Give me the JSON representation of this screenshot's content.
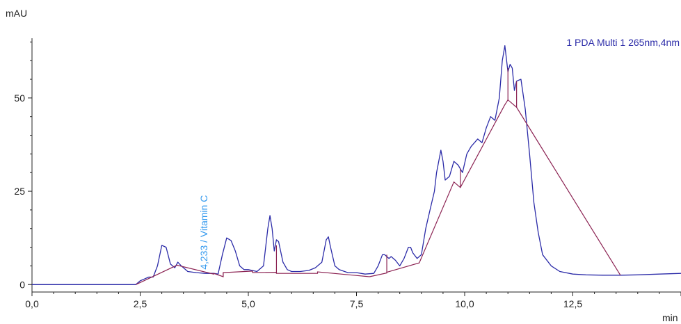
{
  "chart_data": {
    "type": "line",
    "ylabel": "mAU",
    "xlabel": "min",
    "xlim": [
      0,
      15
    ],
    "ylim": [
      -2,
      66
    ],
    "x_ticks": [
      0,
      2.5,
      5,
      7.5,
      10,
      12.5
    ],
    "x_tick_labels": [
      "0,0",
      "2,5",
      "5,0",
      "7,5",
      "10,0",
      "12,5"
    ],
    "y_ticks": [
      0,
      25,
      50
    ],
    "y_tick_labels": [
      "0",
      "25",
      "50"
    ],
    "grid": false,
    "legend_position": "top-right",
    "colors": {
      "signal": "#2b2ba8",
      "baseline": "#8b2252",
      "label": "#3399ee",
      "axis": "#222222"
    },
    "series": [
      {
        "name": "1 PDA Multi 1 265nm,4nm",
        "x": [
          0,
          2.4,
          2.5,
          2.6,
          2.7,
          2.8,
          2.9,
          3.0,
          3.1,
          3.2,
          3.3,
          3.37,
          3.45,
          3.6,
          3.8,
          4.0,
          4.2,
          4.3,
          4.4,
          4.5,
          4.6,
          4.7,
          4.8,
          4.9,
          5.0,
          5.2,
          5.35,
          5.45,
          5.5,
          5.55,
          5.6,
          5.65,
          5.7,
          5.8,
          5.9,
          6.0,
          6.2,
          6.4,
          6.55,
          6.7,
          6.8,
          6.85,
          6.9,
          7.0,
          7.1,
          7.3,
          7.5,
          7.7,
          7.9,
          8.0,
          8.1,
          8.15,
          8.25,
          8.3,
          8.4,
          8.5,
          8.6,
          8.7,
          8.75,
          8.8,
          8.9,
          9.0,
          9.1,
          9.2,
          9.3,
          9.35,
          9.45,
          9.5,
          9.55,
          9.65,
          9.75,
          9.85,
          9.9,
          9.95,
          10.05,
          10.15,
          10.3,
          10.4,
          10.5,
          10.6,
          10.7,
          10.8,
          10.87,
          10.93,
          11.0,
          11.05,
          11.1,
          11.15,
          11.2,
          11.3,
          11.4,
          11.5,
          11.6,
          11.7,
          11.8,
          12.0,
          12.2,
          12.5,
          12.8,
          13.2,
          13.6,
          14.0,
          14.5,
          15.0
        ],
        "y": [
          0,
          0,
          1,
          1.5,
          2,
          2,
          5,
          10.5,
          10,
          5.5,
          4.5,
          6,
          5,
          3.5,
          3.2,
          3,
          3,
          2.8,
          8,
          12.5,
          11.8,
          9,
          5,
          4,
          4,
          3.5,
          5,
          15,
          18.5,
          15,
          9,
          12,
          11.5,
          6,
          4,
          3.5,
          3.5,
          3.8,
          4.5,
          6,
          12,
          12.8,
          10,
          5,
          4,
          3.2,
          3.2,
          2.8,
          3,
          5,
          8,
          8,
          7,
          7.5,
          6.5,
          5,
          7,
          10,
          10,
          8.5,
          7,
          8,
          15,
          20,
          25,
          30,
          36,
          33,
          28,
          29,
          33,
          32,
          31,
          30,
          35,
          37,
          39,
          38,
          42,
          45,
          44,
          50,
          60,
          64,
          57,
          59,
          58,
          52,
          54.5,
          55,
          47,
          35,
          22,
          14,
          8,
          5,
          3.5,
          2.8,
          2.6,
          2.5,
          2.5,
          2.6,
          2.8,
          3
        ]
      }
    ],
    "baseline": {
      "x": [
        2.4,
        3.35,
        4.2,
        4.2,
        4.42,
        4.42,
        5.1,
        5.1,
        5.65,
        5.65,
        6.6,
        6.6,
        7.8,
        7.8,
        8.2,
        8.2,
        8.95,
        8.95,
        9.75,
        9.75,
        9.9,
        9.9,
        10.92,
        10.92,
        11.0,
        11.0,
        11.2,
        11.2,
        13.6
      ],
      "y": [
        0,
        5.2,
        2.8,
        3.0,
        2.1,
        3.2,
        3.6,
        3.2,
        3.3,
        3.0,
        3.0,
        3.4,
        2.1,
        2.1,
        3.1,
        3.3,
        5.8,
        5.8,
        27.5,
        27.5,
        26.0,
        26.0,
        48.0,
        48.0,
        49.5,
        49.5,
        47.5,
        47.5,
        2.5
      ]
    },
    "peak_markers": [
      {
        "x": 4.2,
        "y1": 2.8,
        "y2": 3.0
      },
      {
        "x": 4.42,
        "y1": 2.1,
        "y2": 3.2
      },
      {
        "x": 5.65,
        "y1": 3.0,
        "y2": 10.5
      },
      {
        "x": 8.2,
        "y1": 3.1,
        "y2": 8.0
      },
      {
        "x": 9.9,
        "y1": 26.0,
        "y2": 31.0
      },
      {
        "x": 11.0,
        "y1": 49.5,
        "y2": 58.0
      },
      {
        "x": 11.2,
        "y1": 47.5,
        "y2": 54.5
      }
    ],
    "annotations": [
      {
        "text": "4,233 / Vitamin C",
        "x": 4.05,
        "y": 4.0,
        "rotate": -90
      }
    ]
  }
}
